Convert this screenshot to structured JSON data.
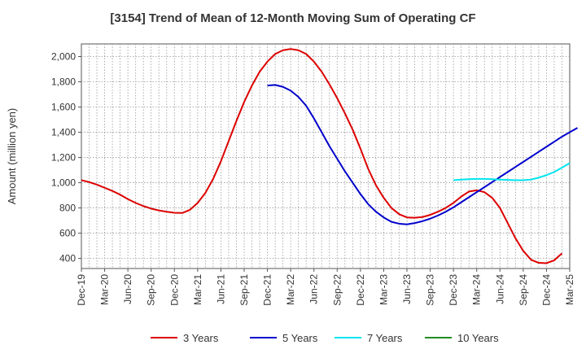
{
  "chart_data": {
    "type": "line",
    "title": "[3154]  Trend of Mean of 12-Month Moving Sum of Operating CF",
    "xlabel": "",
    "ylabel": "Amount (million yen)",
    "ylim": [
      320,
      2100
    ],
    "yticks": [
      400,
      600,
      800,
      1000,
      1200,
      1400,
      1600,
      1800,
      2000
    ],
    "ytick_labels": [
      "400",
      "600",
      "800",
      "1,000",
      "1,200",
      "1,400",
      "1,600",
      "1,800",
      "2,000"
    ],
    "x_start": "Dec-19",
    "x_end": "Mar-25",
    "xtick_labels": [
      "Dec-19",
      "Mar-20",
      "Jun-20",
      "Sep-20",
      "Dec-20",
      "Mar-21",
      "Jun-21",
      "Sep-21",
      "Dec-21",
      "Mar-22",
      "Jun-22",
      "Sep-22",
      "Dec-22",
      "Mar-23",
      "Jun-23",
      "Sep-23",
      "Dec-23",
      "Mar-24",
      "Jun-24",
      "Sep-24",
      "Dec-24",
      "Mar-25"
    ],
    "grid": true,
    "legend_position": "bottom",
    "series": [
      {
        "name": "3 Years",
        "color": "#dd0000",
        "start": "Dec-19",
        "values": [
          1020,
          1005,
          985,
          960,
          935,
          905,
          870,
          840,
          815,
          795,
          780,
          770,
          762,
          760,
          785,
          840,
          920,
          1030,
          1170,
          1330,
          1490,
          1640,
          1770,
          1880,
          1960,
          2020,
          2050,
          2060,
          2050,
          2020,
          1960,
          1880,
          1780,
          1670,
          1550,
          1420,
          1270,
          1110,
          980,
          880,
          800,
          750,
          725,
          722,
          728,
          745,
          770,
          800,
          840,
          890,
          930,
          940,
          925,
          880,
          800,
          680,
          560,
          460,
          390,
          365,
          362,
          385,
          440
        ]
      },
      {
        "name": "5 Years",
        "color": "#0000cc",
        "start": "Dec-21",
        "values": [
          1770,
          1775,
          1760,
          1730,
          1680,
          1610,
          1510,
          1400,
          1290,
          1190,
          1090,
          1000,
          910,
          830,
          770,
          725,
          690,
          675,
          670,
          680,
          695,
          715,
          740,
          770,
          805,
          845,
          885,
          925,
          965,
          1005,
          1045,
          1085,
          1125,
          1165,
          1205,
          1245,
          1285,
          1325,
          1365,
          1400,
          1435
        ]
      },
      {
        "name": "7 Years",
        "color": "#00e5ee",
        "start": "Dec-23",
        "values": [
          1020,
          1025,
          1028,
          1030,
          1030,
          1028,
          1025,
          1022,
          1020,
          1020,
          1025,
          1040,
          1060,
          1085,
          1120,
          1155
        ]
      },
      {
        "name": "10 Years",
        "color": "#228b22",
        "start": "Dec-23",
        "values": []
      }
    ]
  }
}
